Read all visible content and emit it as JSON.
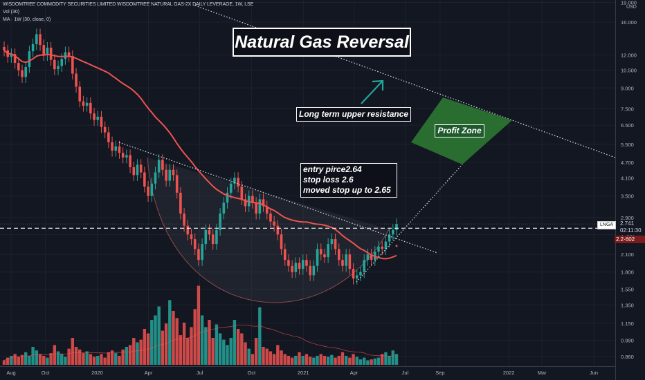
{
  "header": {
    "title": "WISDOMTREE COMMODITY SECURITIES LIMITED WISDOMTREE NATURAL GAS-2X DAILY LEVERAGE, 1W, LSE",
    "volume_label": "Vol (30)",
    "ma_label": "MA · 1W (30, close, 0)"
  },
  "annotations": {
    "title": "Natural Gas Reversal",
    "resistance": "Long term upper resistance",
    "trade_lines": [
      "entry pirce2.64",
      "stop loss 2.6",
      "moved stop up to 2.65"
    ],
    "profit": "Profit Zone"
  },
  "price_tags": {
    "symbol": "LNGA",
    "last": "2.741",
    "countdown": "02:11:30",
    "ma_value": "2.2·602"
  },
  "colors": {
    "background": "#131722",
    "up": "#26a69a",
    "down": "#ef5350",
    "ma": "#ef5350",
    "profit_zone": "#2e7d32",
    "arrow": "#26a69a"
  },
  "chart_data": {
    "type": "candlestick",
    "scale": "log",
    "currency_label": "USD",
    "y_ticks": [
      "19.000",
      "16.000",
      "12.000",
      "10.500",
      "9.000",
      "7.500",
      "6.500",
      "5.500",
      "4.700",
      "4.100",
      "3.500",
      "2.900",
      "2.500",
      "2.100",
      "1.800",
      "1.550",
      "1.350",
      "1.150",
      "0.990",
      "0.860"
    ],
    "x_ticks": [
      "Aug",
      "Oct",
      "2020",
      "Apr",
      "Jul",
      "Oct",
      "2021",
      "Apr",
      "Jul",
      "Sep",
      "2022",
      "Mar",
      "Jun"
    ],
    "x_tick_dates": [
      "2019-08-01",
      "2019-10-01",
      "2020-01-01",
      "2020-04-01",
      "2020-07-01",
      "2020-10-01",
      "2021-01-01",
      "2021-04-01",
      "2021-07-01",
      "2021-09-01",
      "2022-01-01",
      "2022-03-01",
      "2022-06-01"
    ],
    "price_line": 2.64,
    "last_price": 2.741,
    "ma_last": 2.26,
    "close_series": [
      12.5,
      11.8,
      12.1,
      11.2,
      10.5,
      9.9,
      10.8,
      12.4,
      13.2,
      14.4,
      13.1,
      12.0,
      12.8,
      11.5,
      10.6,
      10.9,
      11.6,
      12.3,
      11.9,
      10.2,
      9.1,
      8.0,
      7.7,
      7.9,
      7.2,
      6.8,
      7.0,
      6.4,
      6.1,
      5.6,
      5.2,
      5.4,
      5.1,
      4.9,
      5.0,
      4.5,
      4.2,
      4.6,
      4.3,
      3.8,
      3.5,
      3.9,
      4.3,
      4.8,
      4.4,
      4.0,
      4.4,
      4.2,
      3.6,
      3.0,
      2.7,
      2.5,
      2.4,
      2.2,
      2.0,
      2.3,
      2.6,
      2.5,
      2.3,
      2.6,
      3.0,
      3.3,
      3.6,
      3.9,
      4.1,
      3.8,
      3.4,
      3.2,
      3.5,
      3.3,
      3.0,
      3.4,
      3.2,
      3.0,
      2.8,
      2.7,
      2.5,
      2.2,
      2.0,
      1.9,
      1.8,
      1.95,
      1.85,
      2.0,
      1.9,
      1.75,
      1.9,
      2.2,
      2.1,
      2.05,
      2.3,
      2.4,
      2.2,
      2.0,
      1.9,
      2.1,
      1.85,
      1.7,
      1.75,
      1.8,
      2.0,
      2.1,
      2.0,
      2.15,
      2.25,
      2.2,
      2.35,
      2.5,
      2.6,
      2.74
    ],
    "volume_series": [
      0.05,
      0.08,
      0.1,
      0.12,
      0.09,
      0.11,
      0.14,
      0.1,
      0.2,
      0.16,
      0.12,
      0.1,
      0.08,
      0.13,
      0.22,
      0.15,
      0.12,
      0.09,
      0.18,
      0.3,
      0.2,
      0.17,
      0.13,
      0.15,
      0.12,
      0.09,
      0.1,
      0.12,
      0.08,
      0.14,
      0.16,
      0.13,
      0.1,
      0.17,
      0.2,
      0.22,
      0.3,
      0.25,
      0.28,
      0.4,
      0.35,
      0.5,
      0.55,
      0.65,
      0.38,
      0.46,
      0.72,
      0.6,
      0.52,
      0.33,
      0.47,
      0.3,
      0.42,
      0.62,
      0.88,
      0.55,
      0.42,
      0.5,
      0.3,
      0.45,
      0.35,
      0.28,
      0.22,
      0.3,
      0.5,
      0.4,
      0.35,
      0.25,
      0.18,
      0.12,
      0.3,
      0.64,
      0.2,
      0.18,
      0.15,
      0.12,
      0.22,
      0.16,
      0.12,
      0.1,
      0.08,
      0.1,
      0.14,
      0.1,
      0.12,
      0.09,
      0.08,
      0.1,
      0.12,
      0.1,
      0.09,
      0.11,
      0.08,
      0.1,
      0.14,
      0.1,
      0.08,
      0.12,
      0.09,
      0.06,
      0.08,
      0.05,
      0.06,
      0.07,
      0.08,
      0.12,
      0.14,
      0.1,
      0.16,
      0.12
    ]
  }
}
